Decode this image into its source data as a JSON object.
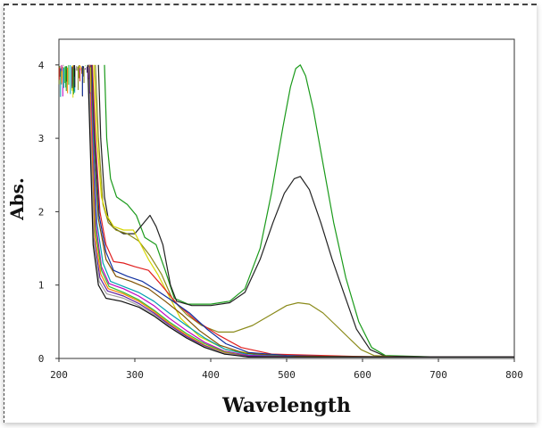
{
  "chart_data": {
    "type": "line",
    "title": "",
    "xlabel": "Wavelength",
    "ylabel": "Abs.",
    "xlim": [
      200,
      800
    ],
    "ylim": [
      0,
      4.35
    ],
    "xticks": [
      200,
      300,
      400,
      500,
      600,
      700,
      800
    ],
    "xtick_labels": [
      "200",
      "300",
      "400",
      "500",
      "600",
      "700",
      "800"
    ],
    "yticks": [
      0,
      1,
      2,
      3,
      4
    ],
    "ytick_labels": [
      "0",
      "1",
      "2",
      "3",
      "4"
    ],
    "grid": false,
    "legend": "none",
    "series": [
      {
        "color": "#1a9a1a",
        "points": [
          [
            260,
            4.0
          ],
          [
            263,
            3.0
          ],
          [
            268,
            2.45
          ],
          [
            276,
            2.2
          ],
          [
            290,
            2.1
          ],
          [
            302,
            1.95
          ],
          [
            313,
            1.65
          ],
          [
            328,
            1.55
          ],
          [
            340,
            1.2
          ],
          [
            352,
            0.82
          ],
          [
            370,
            0.74
          ],
          [
            400,
            0.74
          ],
          [
            425,
            0.78
          ],
          [
            445,
            0.95
          ],
          [
            465,
            1.5
          ],
          [
            480,
            2.25
          ],
          [
            495,
            3.15
          ],
          [
            505,
            3.7
          ],
          [
            512,
            3.95
          ],
          [
            518,
            4.0
          ],
          [
            525,
            3.85
          ],
          [
            535,
            3.4
          ],
          [
            548,
            2.65
          ],
          [
            562,
            1.85
          ],
          [
            578,
            1.1
          ],
          [
            595,
            0.5
          ],
          [
            612,
            0.15
          ],
          [
            630,
            0.04
          ],
          [
            700,
            0.02
          ],
          [
            800,
            0.02
          ]
        ]
      },
      {
        "color": "#222222",
        "points": [
          [
            252,
            4.0
          ],
          [
            255,
            3.0
          ],
          [
            260,
            2.2
          ],
          [
            265,
            1.9
          ],
          [
            272,
            1.78
          ],
          [
            285,
            1.7
          ],
          [
            300,
            1.7
          ],
          [
            312,
            1.85
          ],
          [
            320,
            1.95
          ],
          [
            328,
            1.8
          ],
          [
            337,
            1.55
          ],
          [
            347,
            1.0
          ],
          [
            355,
            0.78
          ],
          [
            375,
            0.72
          ],
          [
            400,
            0.72
          ],
          [
            425,
            0.76
          ],
          [
            445,
            0.9
          ],
          [
            465,
            1.35
          ],
          [
            482,
            1.85
          ],
          [
            497,
            2.25
          ],
          [
            510,
            2.45
          ],
          [
            518,
            2.48
          ],
          [
            530,
            2.3
          ],
          [
            545,
            1.85
          ],
          [
            560,
            1.35
          ],
          [
            575,
            0.9
          ],
          [
            592,
            0.4
          ],
          [
            610,
            0.12
          ],
          [
            630,
            0.03
          ],
          [
            700,
            0.02
          ],
          [
            800,
            0.02
          ]
        ]
      },
      {
        "color": "#8a8a1a",
        "points": [
          [
            248,
            4.0
          ],
          [
            252,
            3.0
          ],
          [
            258,
            2.1
          ],
          [
            265,
            1.85
          ],
          [
            275,
            1.75
          ],
          [
            290,
            1.7
          ],
          [
            305,
            1.6
          ],
          [
            320,
            1.4
          ],
          [
            335,
            1.15
          ],
          [
            350,
            0.8
          ],
          [
            368,
            0.6
          ],
          [
            388,
            0.45
          ],
          [
            410,
            0.36
          ],
          [
            430,
            0.36
          ],
          [
            455,
            0.45
          ],
          [
            480,
            0.6
          ],
          [
            500,
            0.72
          ],
          [
            515,
            0.76
          ],
          [
            530,
            0.74
          ],
          [
            548,
            0.62
          ],
          [
            565,
            0.45
          ],
          [
            582,
            0.28
          ],
          [
            598,
            0.12
          ],
          [
            615,
            0.04
          ],
          [
            650,
            0.02
          ],
          [
            800,
            0.02
          ]
        ]
      },
      {
        "color": "#d6d600",
        "points": [
          [
            246,
            4.0
          ],
          [
            250,
            3.0
          ],
          [
            256,
            2.2
          ],
          [
            263,
            1.95
          ],
          [
            272,
            1.8
          ],
          [
            285,
            1.75
          ],
          [
            298,
            1.75
          ],
          [
            308,
            1.55
          ],
          [
            318,
            1.35
          ],
          [
            330,
            1.15
          ],
          [
            345,
            0.85
          ],
          [
            360,
            0.55
          ],
          [
            385,
            0.3
          ],
          [
            420,
            0.12
          ],
          [
            460,
            0.06
          ],
          [
            520,
            0.04
          ],
          [
            600,
            0.02
          ],
          [
            800,
            0.02
          ]
        ]
      },
      {
        "color": "#e02020",
        "points": [
          [
            244,
            4.0
          ],
          [
            248,
            3.0
          ],
          [
            254,
            2.0
          ],
          [
            262,
            1.55
          ],
          [
            272,
            1.32
          ],
          [
            285,
            1.3
          ],
          [
            300,
            1.25
          ],
          [
            318,
            1.2
          ],
          [
            335,
            1.0
          ],
          [
            355,
            0.75
          ],
          [
            380,
            0.52
          ],
          [
            410,
            0.32
          ],
          [
            440,
            0.15
          ],
          [
            480,
            0.06
          ],
          [
            550,
            0.04
          ],
          [
            620,
            0.02
          ],
          [
            800,
            0.02
          ]
        ]
      },
      {
        "color": "#1030a0",
        "points": [
          [
            243,
            4.0
          ],
          [
            247,
            3.0
          ],
          [
            253,
            1.95
          ],
          [
            262,
            1.45
          ],
          [
            272,
            1.2
          ],
          [
            290,
            1.12
          ],
          [
            310,
            1.05
          ],
          [
            330,
            0.92
          ],
          [
            350,
            0.78
          ],
          [
            372,
            0.62
          ],
          [
            395,
            0.4
          ],
          [
            420,
            0.2
          ],
          [
            450,
            0.08
          ],
          [
            500,
            0.04
          ],
          [
            600,
            0.02
          ],
          [
            800,
            0.02
          ]
        ]
      },
      {
        "color": "#805000",
        "points": [
          [
            242,
            4.0
          ],
          [
            246,
            3.0
          ],
          [
            252,
            1.9
          ],
          [
            262,
            1.35
          ],
          [
            275,
            1.12
          ],
          [
            295,
            1.05
          ],
          [
            318,
            0.95
          ],
          [
            340,
            0.78
          ],
          [
            362,
            0.6
          ],
          [
            385,
            0.38
          ],
          [
            412,
            0.18
          ],
          [
            445,
            0.07
          ],
          [
            500,
            0.03
          ],
          [
            800,
            0.02
          ]
        ]
      },
      {
        "color": "#00a0b0",
        "points": [
          [
            241,
            4.0
          ],
          [
            245,
            3.0
          ],
          [
            250,
            1.85
          ],
          [
            258,
            1.3
          ],
          [
            268,
            1.05
          ],
          [
            285,
            0.98
          ],
          [
            305,
            0.9
          ],
          [
            325,
            0.78
          ],
          [
            345,
            0.62
          ],
          [
            368,
            0.45
          ],
          [
            392,
            0.28
          ],
          [
            418,
            0.13
          ],
          [
            450,
            0.05
          ],
          [
            520,
            0.02
          ],
          [
            800,
            0.02
          ]
        ]
      },
      {
        "color": "#c000c0",
        "points": [
          [
            241,
            4.0
          ],
          [
            244,
            3.0
          ],
          [
            249,
            1.8
          ],
          [
            256,
            1.25
          ],
          [
            266,
            1.02
          ],
          [
            285,
            0.95
          ],
          [
            305,
            0.85
          ],
          [
            325,
            0.72
          ],
          [
            345,
            0.55
          ],
          [
            368,
            0.38
          ],
          [
            392,
            0.22
          ],
          [
            418,
            0.1
          ],
          [
            450,
            0.04
          ],
          [
            520,
            0.02
          ],
          [
            800,
            0.02
          ]
        ]
      },
      {
        "color": "#30c030",
        "points": [
          [
            240,
            4.0
          ],
          [
            243,
            3.0
          ],
          [
            248,
            1.75
          ],
          [
            256,
            1.2
          ],
          [
            266,
            0.98
          ],
          [
            285,
            0.9
          ],
          [
            305,
            0.8
          ],
          [
            325,
            0.66
          ],
          [
            345,
            0.5
          ],
          [
            368,
            0.34
          ],
          [
            392,
            0.2
          ],
          [
            418,
            0.09
          ],
          [
            450,
            0.03
          ],
          [
            520,
            0.02
          ],
          [
            800,
            0.02
          ]
        ]
      },
      {
        "color": "#ff8000",
        "points": [
          [
            240,
            4.0
          ],
          [
            243,
            3.0
          ],
          [
            247,
            1.7
          ],
          [
            255,
            1.15
          ],
          [
            265,
            0.95
          ],
          [
            285,
            0.88
          ],
          [
            305,
            0.78
          ],
          [
            325,
            0.64
          ],
          [
            345,
            0.48
          ],
          [
            368,
            0.32
          ],
          [
            392,
            0.18
          ],
          [
            418,
            0.08
          ],
          [
            450,
            0.03
          ],
          [
            520,
            0.02
          ],
          [
            800,
            0.02
          ]
        ]
      },
      {
        "color": "#6020a0",
        "points": [
          [
            239,
            4.0
          ],
          [
            242,
            3.0
          ],
          [
            246,
            1.65
          ],
          [
            254,
            1.1
          ],
          [
            264,
            0.92
          ],
          [
            285,
            0.85
          ],
          [
            305,
            0.75
          ],
          [
            325,
            0.62
          ],
          [
            345,
            0.46
          ],
          [
            368,
            0.3
          ],
          [
            392,
            0.17
          ],
          [
            418,
            0.07
          ],
          [
            450,
            0.03
          ],
          [
            520,
            0.02
          ],
          [
            800,
            0.02
          ]
        ]
      },
      {
        "color": "#a0a0a0",
        "points": [
          [
            239,
            4.0
          ],
          [
            242,
            3.0
          ],
          [
            246,
            1.6
          ],
          [
            253,
            1.05
          ],
          [
            263,
            0.88
          ],
          [
            285,
            0.82
          ],
          [
            305,
            0.72
          ],
          [
            325,
            0.6
          ],
          [
            345,
            0.44
          ],
          [
            368,
            0.28
          ],
          [
            392,
            0.16
          ],
          [
            418,
            0.07
          ],
          [
            450,
            0.02
          ],
          [
            520,
            0.02
          ],
          [
            800,
            0.02
          ]
        ]
      },
      {
        "color": "#101010",
        "points": [
          [
            238,
            4.0
          ],
          [
            241,
            3.0
          ],
          [
            245,
            1.55
          ],
          [
            252,
            1.0
          ],
          [
            262,
            0.82
          ],
          [
            282,
            0.78
          ],
          [
            305,
            0.7
          ],
          [
            325,
            0.58
          ],
          [
            345,
            0.43
          ],
          [
            368,
            0.28
          ],
          [
            392,
            0.15
          ],
          [
            418,
            0.06
          ],
          [
            450,
            0.02
          ],
          [
            520,
            0.02
          ],
          [
            800,
            0.02
          ]
        ]
      }
    ]
  }
}
